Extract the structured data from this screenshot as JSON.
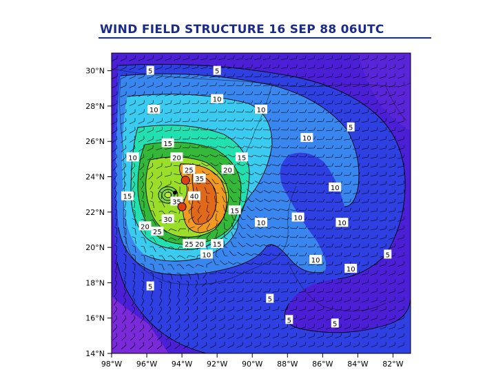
{
  "title": "WIND FIELD STRUCTURE 16 SEP 88 06UTC",
  "chart_data": {
    "type": "heatmap",
    "title": "WIND FIELD STRUCTURE 16 SEP 88 06UTC",
    "xlabel": "",
    "ylabel": "",
    "xlim": [
      -98,
      -81
    ],
    "ylim": [
      14,
      31
    ],
    "x_ticks": [
      "98°W",
      "96°W",
      "94°W",
      "92°W",
      "90°W",
      "88°W",
      "86°W",
      "84°W",
      "82°W"
    ],
    "y_ticks": [
      "30°N",
      "28°N",
      "26°N",
      "24°N",
      "22°N",
      "20°N",
      "18°N",
      "16°N",
      "14°N"
    ],
    "storm_center": {
      "lon": -94.4,
      "lat": 23.1
    },
    "wind_maxima": [
      {
        "lon": -93.8,
        "lat": 23.8
      },
      {
        "lon": -94.0,
        "lat": 22.3
      }
    ],
    "contour_levels": [
      5,
      10,
      15,
      20,
      25,
      30,
      35,
      40
    ],
    "contour_labels": [
      {
        "text": "5",
        "lon": -95.8,
        "lat": 30.0
      },
      {
        "text": "5",
        "lon": -92.0,
        "lat": 30.0
      },
      {
        "text": "10",
        "lon": -92.0,
        "lat": 28.4
      },
      {
        "text": "10",
        "lon": -95.6,
        "lat": 27.8
      },
      {
        "text": "10",
        "lon": -89.5,
        "lat": 27.8
      },
      {
        "text": "10",
        "lon": -86.9,
        "lat": 26.2
      },
      {
        "text": "5",
        "lon": -84.4,
        "lat": 26.8
      },
      {
        "text": "15",
        "lon": -94.8,
        "lat": 25.9
      },
      {
        "text": "15",
        "lon": -90.6,
        "lat": 25.1
      },
      {
        "text": "10",
        "lon": -96.8,
        "lat": 25.1
      },
      {
        "text": "10",
        "lon": -85.3,
        "lat": 23.4
      },
      {
        "text": "20",
        "lon": -94.3,
        "lat": 25.1
      },
      {
        "text": "25",
        "lon": -93.6,
        "lat": 24.4
      },
      {
        "text": "35",
        "lon": -93.0,
        "lat": 23.9
      },
      {
        "text": "20",
        "lon": -91.4,
        "lat": 24.4
      },
      {
        "text": "15",
        "lon": -91.0,
        "lat": 22.1
      },
      {
        "text": "10",
        "lon": -89.5,
        "lat": 21.4
      },
      {
        "text": "10",
        "lon": -87.4,
        "lat": 21.7
      },
      {
        "text": "10",
        "lon": -84.9,
        "lat": 21.4
      },
      {
        "text": "5",
        "lon": -82.3,
        "lat": 19.6
      },
      {
        "text": "15",
        "lon": -97.1,
        "lat": 22.9
      },
      {
        "text": "20",
        "lon": -96.1,
        "lat": 21.2
      },
      {
        "text": "25",
        "lon": -95.4,
        "lat": 20.9
      },
      {
        "text": "30",
        "lon": -94.8,
        "lat": 21.6
      },
      {
        "text": "35",
        "lon": -94.3,
        "lat": 22.6
      },
      {
        "text": "40",
        "lon": -93.3,
        "lat": 22.9
      },
      {
        "text": "25",
        "lon": -93.6,
        "lat": 20.2
      },
      {
        "text": "20",
        "lon": -93.0,
        "lat": 20.2
      },
      {
        "text": "15",
        "lon": -92.0,
        "lat": 20.2
      },
      {
        "text": "10",
        "lon": -92.6,
        "lat": 19.6
      },
      {
        "text": "10",
        "lon": -86.4,
        "lat": 19.3
      },
      {
        "text": "10",
        "lon": -84.4,
        "lat": 18.8
      },
      {
        "text": "5",
        "lon": -95.8,
        "lat": 17.8
      },
      {
        "text": "5",
        "lon": -89.0,
        "lat": 17.1
      },
      {
        "text": "5",
        "lon": -87.9,
        "lat": 15.9
      },
      {
        "text": "5",
        "lon": -85.3,
        "lat": 15.7
      }
    ],
    "colors": {
      "5": "#4a1fd6",
      "10": "#2e5ee8",
      "15": "#36c8ee",
      "20": "#1ee8b4",
      "25": "#30c030",
      "30": "#8adc26",
      "35": "#f0a020",
      "40": "#e07020"
    }
  }
}
